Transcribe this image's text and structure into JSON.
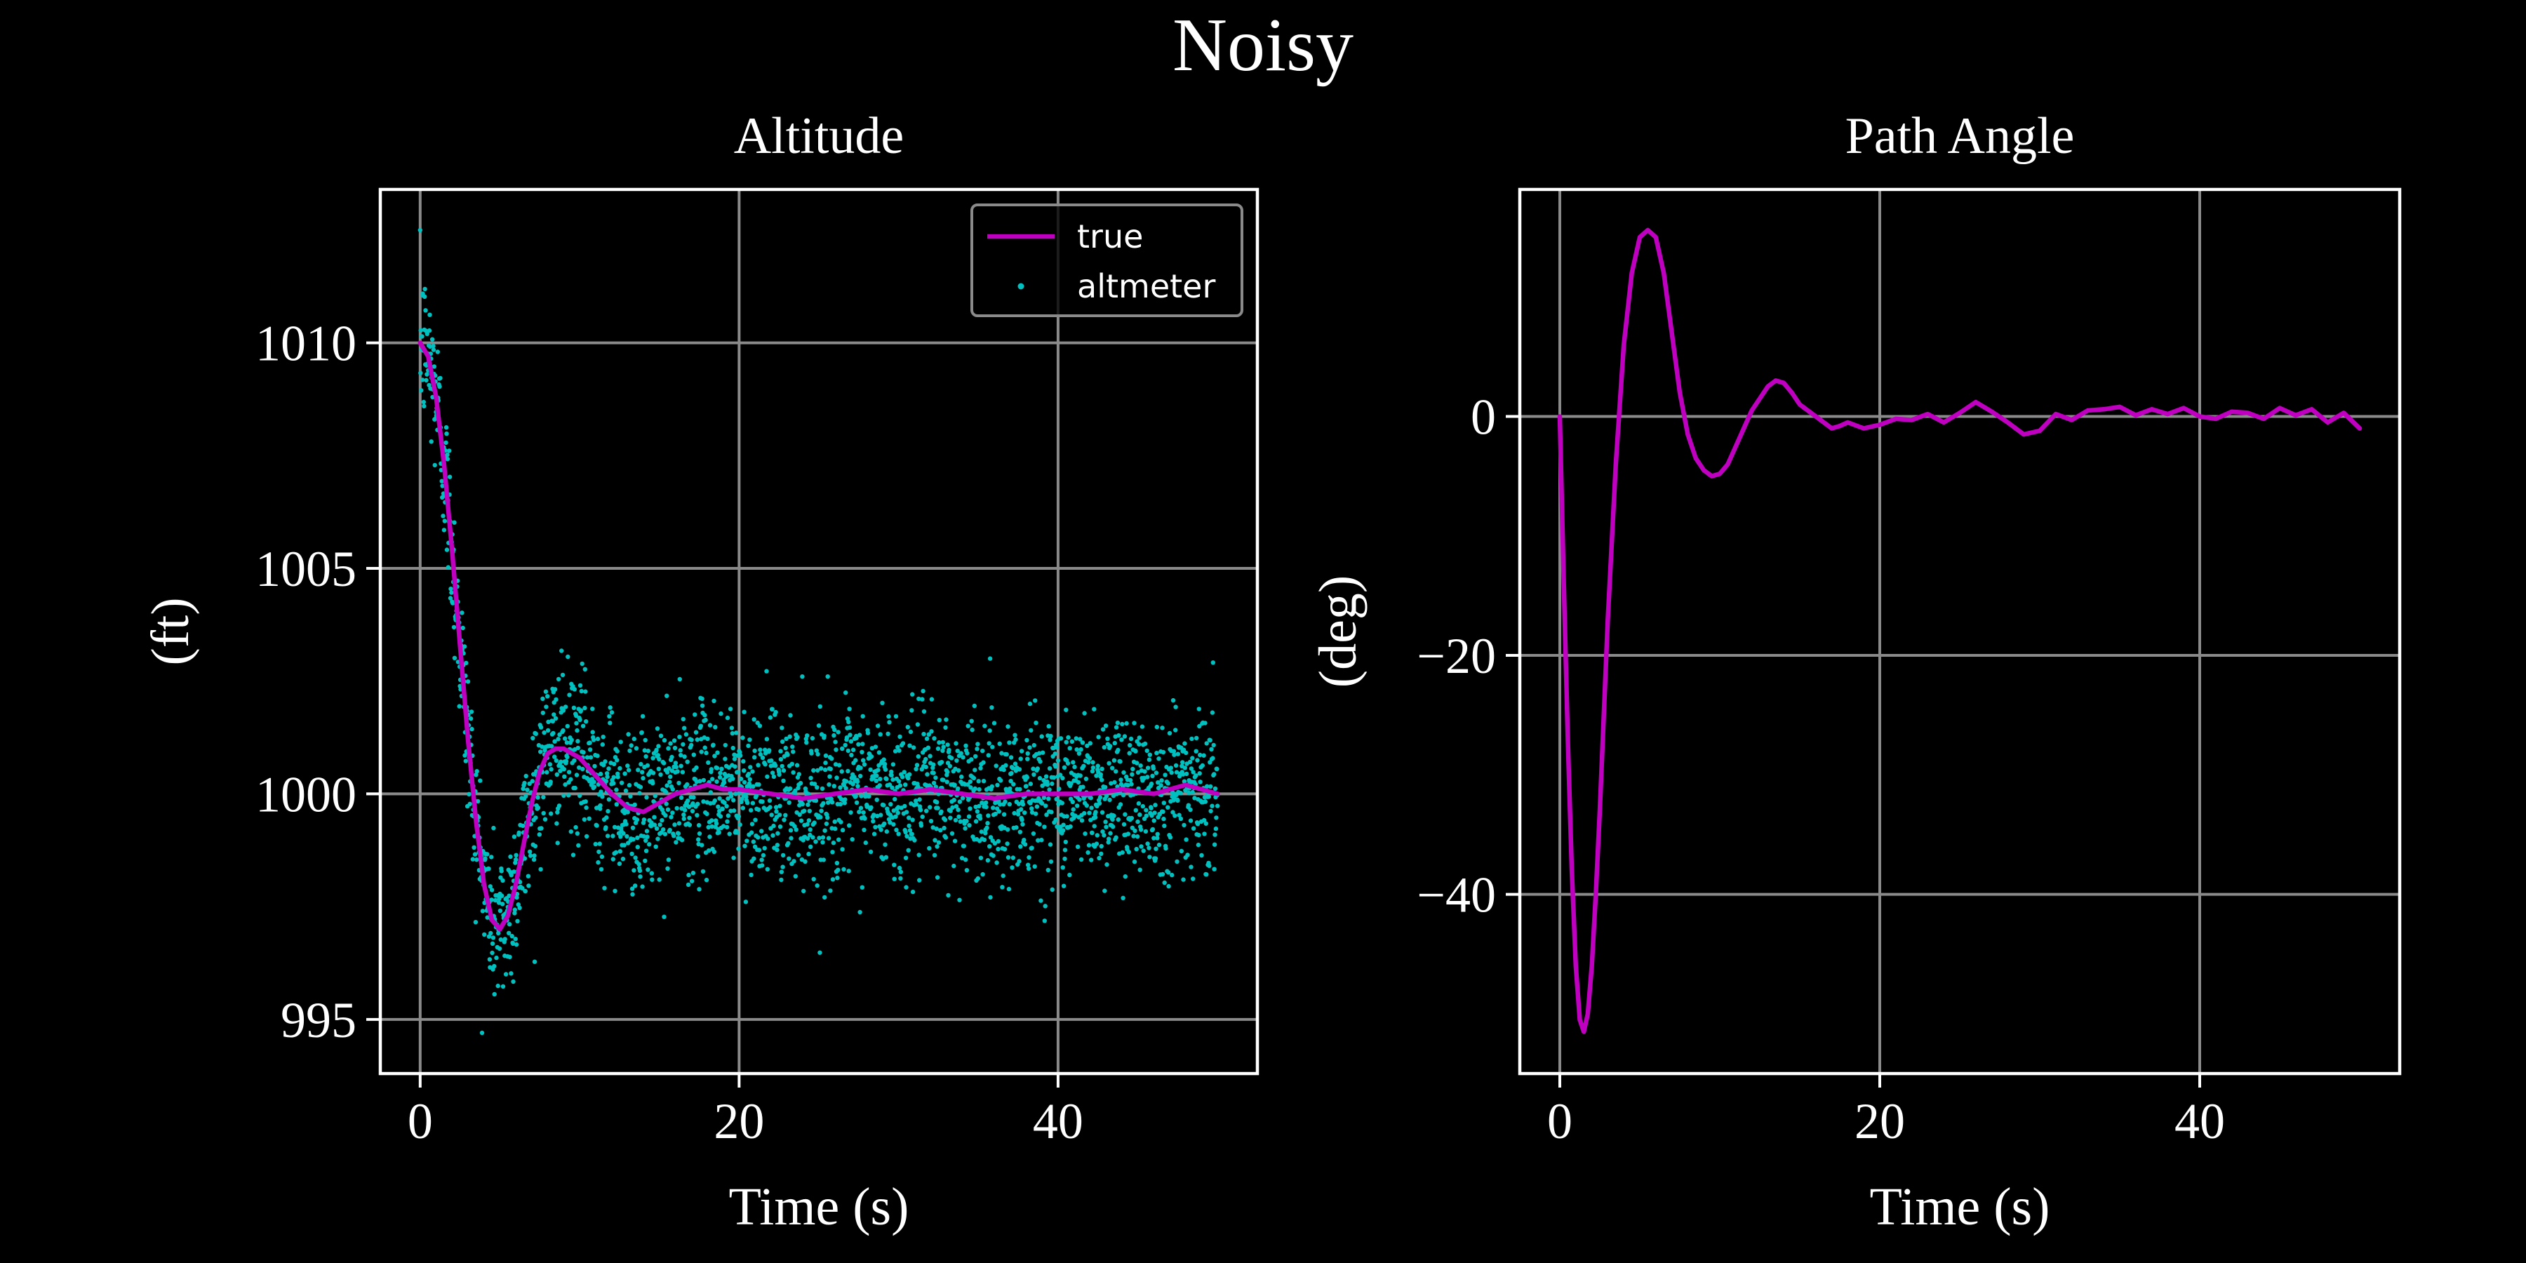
{
  "figure": {
    "title": "Noisy",
    "background": "#000000",
    "foreground": "#ffffff",
    "grid_color": "#8a8a8a"
  },
  "chart_data": [
    {
      "type": "line",
      "title": "Altitude",
      "xlabel": "Time (s)",
      "ylabel": "(ft)",
      "xlim": [
        -2.5,
        52.5
      ],
      "ylim": [
        993.8,
        1013.4
      ],
      "xticks": [
        0,
        20,
        40
      ],
      "xtick_labels": [
        "0",
        "20",
        "40"
      ],
      "yticks": [
        995,
        1000,
        1005,
        1010
      ],
      "ytick_labels": [
        "995",
        "1000",
        "1005",
        "1010"
      ],
      "grid": true,
      "legend": {
        "position": "top-right",
        "entries": [
          "true",
          "altmeter"
        ]
      },
      "series": [
        {
          "name": "true",
          "kind": "line",
          "color": "#c000c0",
          "x": [
            0,
            0.5,
            1,
            1.5,
            2,
            2.5,
            3,
            3.5,
            4,
            4.5,
            5,
            5.5,
            6,
            6.5,
            7,
            7.5,
            8,
            8.5,
            9,
            9.5,
            10,
            11,
            12,
            13,
            14,
            15,
            16,
            17,
            18,
            19,
            20,
            22,
            24,
            26,
            28,
            30,
            32,
            34,
            36,
            38,
            40,
            42,
            44,
            46,
            48,
            50
          ],
          "y": [
            1010,
            1009.7,
            1008.8,
            1007.3,
            1005.4,
            1003.3,
            1001.2,
            999.4,
            998.0,
            997.2,
            997.0,
            997.3,
            998.0,
            998.9,
            999.8,
            1000.5,
            1000.9,
            1001.0,
            1001.0,
            1000.9,
            1000.8,
            1000.4,
            1000.0,
            999.7,
            999.6,
            999.8,
            1000.0,
            1000.1,
            1000.2,
            1000.1,
            1000.1,
            1000.0,
            999.9,
            1000.0,
            1000.1,
            1000.0,
            1000.1,
            1000.0,
            999.9,
            1000.0,
            1000.0,
            1000.0,
            1000.1,
            1000.0,
            1000.2,
            1000.0
          ]
        },
        {
          "name": "altmeter",
          "kind": "scatter",
          "color": "#00c0c0",
          "sampling": {
            "x_start": 0,
            "x_end": 50,
            "step": 0.02,
            "noise_sigma": 0.9,
            "tracks": "true"
          }
        }
      ]
    },
    {
      "type": "line",
      "title": "Path Angle",
      "xlabel": "Time (s)",
      "ylabel": "(deg)",
      "xlim": [
        -2.5,
        52.5
      ],
      "ylim": [
        -55,
        19
      ],
      "xticks": [
        0,
        20,
        40
      ],
      "xtick_labels": [
        "0",
        "20",
        "40"
      ],
      "yticks": [
        -40,
        -20,
        0
      ],
      "ytick_labels": [
        "−40",
        "−20",
        "0"
      ],
      "grid": true,
      "series": [
        {
          "name": "path angle",
          "kind": "line",
          "color": "#c000c0",
          "x": [
            0,
            0.25,
            0.5,
            0.75,
            1,
            1.25,
            1.5,
            1.75,
            2,
            2.25,
            2.5,
            2.75,
            3,
            3.5,
            4,
            4.5,
            5,
            5.5,
            6,
            6.5,
            7,
            7.5,
            8,
            8.5,
            9,
            9.5,
            10,
            10.5,
            11,
            11.5,
            12,
            12.5,
            13,
            13.5,
            14,
            14.5,
            15,
            15.5,
            16,
            16.5,
            17,
            17.5,
            18,
            19,
            20,
            21,
            22,
            23,
            24,
            25,
            26,
            27,
            28,
            29,
            30,
            31,
            32,
            33,
            34,
            35,
            36,
            37,
            38,
            39,
            40,
            41,
            42,
            43,
            44,
            45,
            46,
            47,
            48,
            49,
            50
          ],
          "y": [
            0,
            -14,
            -27,
            -38,
            -46,
            -50.5,
            -51.5,
            -50,
            -46,
            -40,
            -33,
            -25,
            -17,
            -4,
            6,
            12,
            15,
            15.6,
            15,
            12,
            7,
            2,
            -1.5,
            -3.5,
            -4.5,
            -5,
            -4.8,
            -4,
            -2.5,
            -1,
            0.5,
            1.5,
            2.5,
            3,
            2.8,
            2,
            1,
            0.5,
            0,
            -0.5,
            -1,
            -0.8,
            -0.5,
            -1,
            -0.7,
            -0.2,
            -0.3,
            0.2,
            -0.5,
            0.3,
            1.2,
            0.4,
            -0.5,
            -1.5,
            -1.2,
            0.2,
            -0.3,
            0.5,
            0.6,
            0.8,
            0.1,
            0.6,
            0.2,
            0.7,
            0,
            -0.2,
            0.4,
            0.3,
            -0.2,
            0.7,
            0.1,
            0.6,
            -0.5,
            0.3,
            -1
          ]
        }
      ]
    }
  ]
}
